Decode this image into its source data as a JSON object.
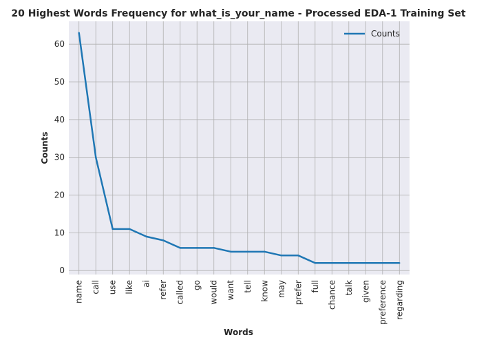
{
  "chart_data": {
    "type": "line",
    "title": "20 Highest Words Frequency for what_is_your_name - Processed EDA-1 Training Set",
    "xlabel": "Words",
    "ylabel": "Counts",
    "categories": [
      "name",
      "call",
      "use",
      "like",
      "ai",
      "refer",
      "called",
      "go",
      "would",
      "want",
      "tell",
      "know",
      "may",
      "prefer",
      "full",
      "chance",
      "talk",
      "given",
      "preference",
      "regarding"
    ],
    "series": [
      {
        "name": "Counts",
        "values": [
          63,
          30,
          11,
          11,
          9,
          8,
          6,
          6,
          6,
          5,
          5,
          5,
          4,
          4,
          2,
          2,
          2,
          2,
          2,
          2
        ],
        "color": "#1f77b4"
      }
    ],
    "ylim": [
      -1.05,
      66.05
    ],
    "yticks": [
      0,
      10,
      20,
      30,
      40,
      50,
      60
    ],
    "grid": true,
    "legend": "top-right",
    "background_color": "#eaeaf2",
    "grid_color": "#b0b0b0"
  }
}
